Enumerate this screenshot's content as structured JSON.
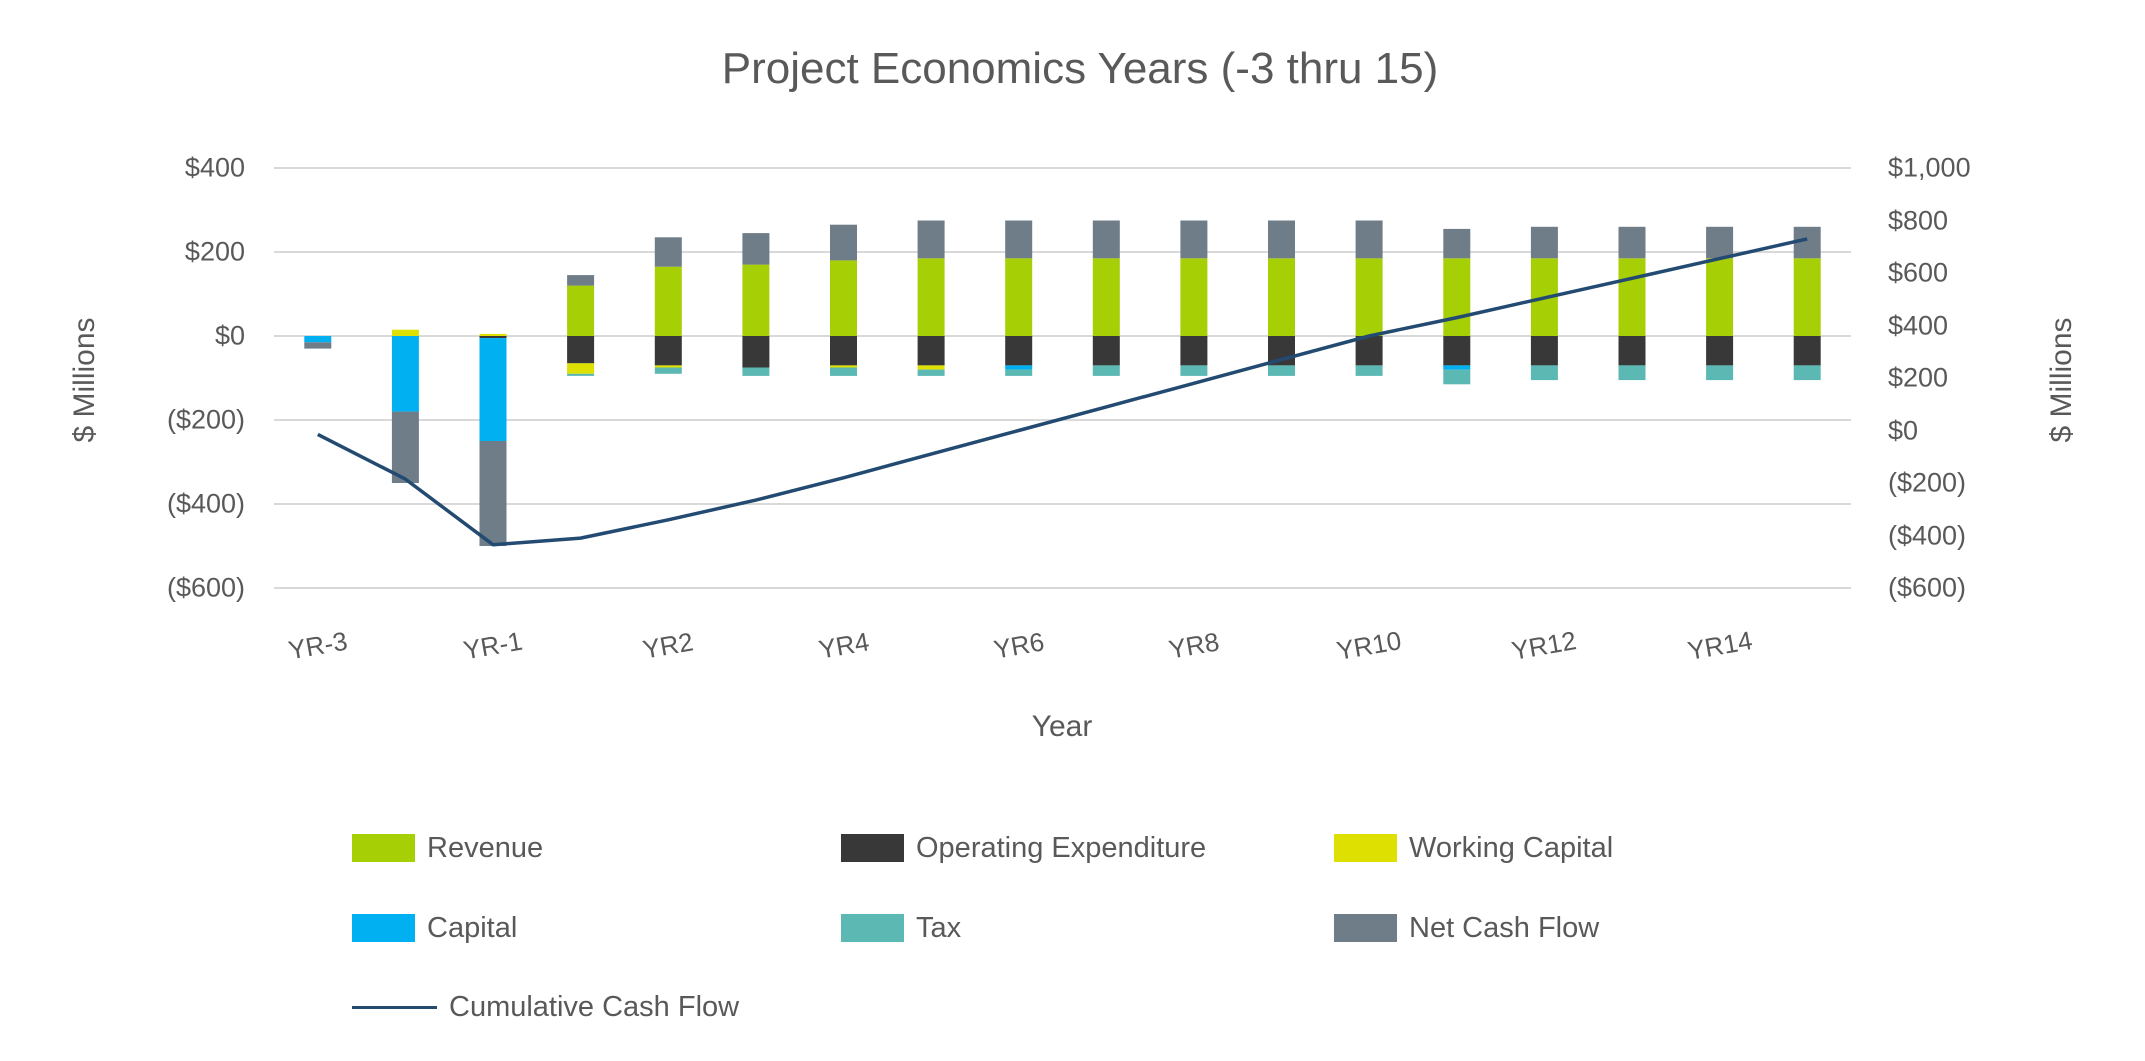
{
  "title": "Project Economics Years (-3 thru 15)",
  "axes": {
    "x_title": "Year",
    "left_title": "$ Millions",
    "right_title": "$ Millions",
    "left_tick_labels": [
      "$400",
      "$200",
      "$0",
      "($200)",
      "($400)",
      "($600)"
    ],
    "right_tick_labels": [
      "$1,000",
      "$800",
      "$600",
      "$400",
      "$200",
      "$0",
      "($200)",
      "($400)",
      "($600)"
    ],
    "x_tick_labels_shown": [
      "YR-3",
      "YR-1",
      "YR2",
      "YR4",
      "YR6",
      "YR8",
      "YR10",
      "YR12",
      "YR14"
    ]
  },
  "chart_data": {
    "type": "bar",
    "subtype": "stacked-bar-with-line",
    "title": "Project Economics Years (-3 thru 15)",
    "xlabel": "Year",
    "ylabel_left": "$ Millions",
    "ylabel_right": "$ Millions",
    "grid": "horizontal",
    "left_axis": {
      "min": -600,
      "max": 400,
      "tick_step": 200
    },
    "right_axis": {
      "min": -600,
      "max": 1000,
      "tick_step": 200
    },
    "categories": [
      "YR-3",
      "YR-2",
      "YR-1",
      "YR1",
      "YR2",
      "YR3",
      "YR4",
      "YR5",
      "YR6",
      "YR7",
      "YR8",
      "YR9",
      "YR10",
      "YR11",
      "YR12",
      "YR13",
      "YR14",
      "YR15"
    ],
    "x_ticks_every": 2,
    "series": [
      {
        "name": "Revenue",
        "color": "#A6CF06",
        "axis": "left",
        "values": [
          0,
          0,
          0,
          120,
          165,
          170,
          180,
          185,
          185,
          185,
          185,
          185,
          185,
          185,
          185,
          185,
          185,
          185
        ]
      },
      {
        "name": "Operating Expenditure",
        "color": "#383838",
        "axis": "left",
        "values": [
          0,
          0,
          -5,
          -65,
          -70,
          -75,
          -70,
          -70,
          -70,
          -70,
          -70,
          -70,
          -70,
          -70,
          -70,
          -70,
          -70,
          -70
        ]
      },
      {
        "name": "Working Capital",
        "color": "#DDE000",
        "axis": "left",
        "values": [
          0,
          15,
          5,
          -25,
          -5,
          0,
          -5,
          -10,
          0,
          0,
          0,
          0,
          0,
          0,
          0,
          0,
          0,
          0
        ]
      },
      {
        "name": "Capital",
        "color": "#00B0F0",
        "axis": "left",
        "values": [
          -15,
          -180,
          -245,
          0,
          0,
          0,
          0,
          0,
          -10,
          0,
          0,
          0,
          0,
          -10,
          0,
          0,
          0,
          0
        ]
      },
      {
        "name": "Tax",
        "color": "#5CB8B2",
        "axis": "left",
        "values": [
          0,
          0,
          0,
          -5,
          -15,
          -20,
          -20,
          -15,
          -15,
          -25,
          -25,
          -25,
          -25,
          -35,
          -35,
          -35,
          -35,
          -35
        ]
      },
      {
        "name": "Net Cash Flow",
        "color": "#6F7D89",
        "axis": "left",
        "values": [
          -15,
          -170,
          -250,
          25,
          70,
          75,
          85,
          90,
          90,
          90,
          90,
          90,
          90,
          70,
          75,
          75,
          75,
          75
        ]
      }
    ],
    "line_series": {
      "name": "Cumulative Cash Flow",
      "color": "#234B72",
      "axis": "right",
      "values": [
        -15,
        -185,
        -435,
        -410,
        -340,
        -265,
        -180,
        -90,
        0,
        90,
        180,
        270,
        360,
        430,
        505,
        580,
        655,
        730
      ]
    }
  },
  "legend": {
    "items": [
      {
        "label": "Revenue",
        "color": "#A6CF06",
        "type": "box"
      },
      {
        "label": "Operating Expenditure",
        "color": "#383838",
        "type": "box"
      },
      {
        "label": "Working Capital",
        "color": "#DDE000",
        "type": "box"
      },
      {
        "label": "Capital",
        "color": "#00B0F0",
        "type": "box"
      },
      {
        "label": "Tax",
        "color": "#5CB8B2",
        "type": "box"
      },
      {
        "label": "Net Cash Flow",
        "color": "#6F7D89",
        "type": "box"
      },
      {
        "label": "Cumulative Cash Flow",
        "color": "#234B72",
        "type": "line"
      }
    ]
  },
  "style": {
    "text_color": "#595959",
    "gridline_color": "#D9D9D9",
    "background": "#FFFFFF"
  }
}
